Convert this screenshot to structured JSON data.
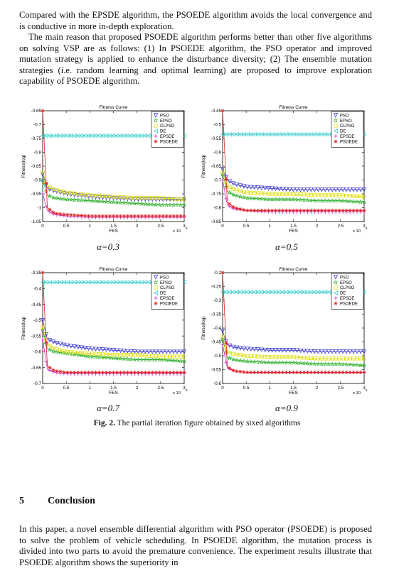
{
  "body_text": {
    "para1": "Compared with the EPSDE algorithm, the PSOEDE algorithm avoids the local convergence and is conductive in more in-depth exploration.",
    "para2": "The main reason that proposed PSOEDE algorithm performs better than other five algorithms on solving VSP are as follows: (1) In PSOEDE algorithm, the PSO operator and improved mutation strategy is applied to enhance the disturbance diversity; (2) The ensemble mutation strategies (i.e. random learning and optimal learning) are proposed to improve exploration capability of PSOEDE algorithm."
  },
  "figure": {
    "caption_label": "Fig. 2.",
    "caption_text": " The partial iteration figure obtained by sixed algorithms"
  },
  "section": {
    "number": "5",
    "title": "Conclusion",
    "paragraph": "In this paper, a novel ensemble differential algorithm with PSO operator (PSOEDE) is proposed to solve the problem of vehicle scheduling. In PSOEDE algorithm, the mutation process is divided into two parts to avoid the premature convenience. The experiment results illustrate that PSOEDE algorithm shows the superiority in"
  },
  "chart_data": [
    {
      "type": "line",
      "title": "Fitness Curve",
      "xlabel": "FES",
      "ylabel": "Fitness(log)",
      "x_multiplier": "x 10",
      "x_multiplier_exp": "5",
      "alpha_label": "α=0.3",
      "xlim": [
        0,
        3
      ],
      "ylim": [
        -1.05,
        -0.65
      ],
      "xticks": [
        "0",
        "0.5",
        "1",
        "1.5",
        "2",
        "2.5",
        "3"
      ],
      "yticks": [
        "-0.65",
        "-0.7",
        "-0.75",
        "-0.8",
        "-0.85",
        "-0.9",
        "-0.95",
        "-1",
        "-1.05"
      ],
      "x": [
        0,
        0.1,
        0.25,
        0.5,
        1,
        1.5,
        2,
        2.5,
        3
      ],
      "series": [
        {
          "name": "PSO",
          "color": "#3333cc",
          "marker": "triangle-down",
          "values": [
            -0.88,
            -0.93,
            -0.94,
            -0.95,
            -0.96,
            -0.965,
            -0.97,
            -0.97,
            -0.97
          ]
        },
        {
          "name": "EPSO",
          "color": "#22aa22",
          "marker": "star",
          "values": [
            -0.9,
            -0.955,
            -0.965,
            -0.97,
            -0.975,
            -0.98,
            -0.985,
            -0.99,
            -0.99
          ]
        },
        {
          "name": "CLPSO",
          "color": "#dddd00",
          "marker": "square",
          "values": [
            -0.87,
            -0.92,
            -0.935,
            -0.945,
            -0.955,
            -0.96,
            -0.965,
            -0.965,
            -0.97
          ]
        },
        {
          "name": "DE",
          "color": "#33cccc",
          "marker": "triangle-left",
          "values": [
            -0.74,
            -0.74,
            -0.74,
            -0.74,
            -0.74,
            -0.74,
            -0.74,
            -0.74,
            -0.74
          ]
        },
        {
          "name": "EPSDE",
          "color": "#cc33cc",
          "marker": "plus",
          "values": [
            -0.95,
            -1.01,
            -1.025,
            -1.03,
            -1.035,
            -1.035,
            -1.035,
            -1.035,
            -1.035
          ]
        },
        {
          "name": "PSOEDE",
          "color": "#dd2222",
          "marker": "asterisk",
          "values": [
            -0.65,
            -1.0,
            -1.02,
            -1.025,
            -1.03,
            -1.03,
            -1.03,
            -1.03,
            -1.03
          ]
        }
      ],
      "legend": "top-right",
      "grid": false
    },
    {
      "type": "line",
      "title": "Fitness Curve",
      "xlabel": "FES",
      "ylabel": "Fitness(log)",
      "x_multiplier": "x 10",
      "x_multiplier_exp": "5",
      "alpha_label": "α=0.5",
      "xlim": [
        0,
        3
      ],
      "ylim": [
        -0.85,
        -0.45
      ],
      "xticks": [
        "0",
        "0.5",
        "1",
        "1.5",
        "2",
        "2.5",
        "3"
      ],
      "yticks": [
        "-0.45",
        "-0.5",
        "-0.55",
        "-0.6",
        "-0.65",
        "-0.7",
        "-0.75",
        "-0.8",
        "-0.85"
      ],
      "x": [
        0,
        0.1,
        0.25,
        0.5,
        1,
        1.5,
        2,
        2.5,
        3
      ],
      "series": [
        {
          "name": "PSO",
          "color": "#3333cc",
          "marker": "triangle-down",
          "values": [
            -0.66,
            -0.7,
            -0.715,
            -0.725,
            -0.73,
            -0.735,
            -0.735,
            -0.735,
            -0.735
          ]
        },
        {
          "name": "EPSO",
          "color": "#22aa22",
          "marker": "star",
          "values": [
            -0.68,
            -0.74,
            -0.755,
            -0.765,
            -0.77,
            -0.77,
            -0.775,
            -0.775,
            -0.78
          ]
        },
        {
          "name": "CLPSO",
          "color": "#dddd00",
          "marker": "square",
          "values": [
            -0.67,
            -0.72,
            -0.735,
            -0.745,
            -0.75,
            -0.75,
            -0.755,
            -0.755,
            -0.76
          ]
        },
        {
          "name": "DE",
          "color": "#33cccc",
          "marker": "triangle-left",
          "values": [
            -0.535,
            -0.535,
            -0.535,
            -0.535,
            -0.535,
            -0.535,
            -0.535,
            -0.535,
            -0.535
          ]
        },
        {
          "name": "EPSDE",
          "color": "#cc33cc",
          "marker": "plus",
          "values": [
            -0.7,
            -0.79,
            -0.805,
            -0.81,
            -0.815,
            -0.815,
            -0.815,
            -0.815,
            -0.815
          ]
        },
        {
          "name": "PSOEDE",
          "color": "#dd2222",
          "marker": "asterisk",
          "values": [
            -0.45,
            -0.78,
            -0.8,
            -0.81,
            -0.81,
            -0.81,
            -0.81,
            -0.81,
            -0.81
          ]
        }
      ],
      "legend": "top-right",
      "grid": false
    },
    {
      "type": "line",
      "title": "Fitness Curve",
      "xlabel": "FES",
      "ylabel": "Fitness(log)",
      "x_multiplier": "x 10",
      "x_multiplier_exp": "5",
      "alpha_label": "α=0.7",
      "xlim": [
        0,
        3
      ],
      "ylim": [
        -0.7,
        -0.35
      ],
      "xticks": [
        "0",
        "0.5",
        "1",
        "1.5",
        "2",
        "2.5",
        "3"
      ],
      "yticks": [
        "-0.35",
        "-0.4",
        "-0.45",
        "-0.5",
        "-0.55",
        "-0.6",
        "-0.65",
        "-0.7"
      ],
      "x": [
        0,
        0.1,
        0.25,
        0.5,
        1,
        1.5,
        2,
        2.5,
        3
      ],
      "series": [
        {
          "name": "PSO",
          "color": "#3333cc",
          "marker": "triangle-down",
          "values": [
            -0.5,
            -0.56,
            -0.57,
            -0.58,
            -0.59,
            -0.595,
            -0.6,
            -0.6,
            -0.6
          ]
        },
        {
          "name": "EPSO",
          "color": "#22aa22",
          "marker": "star",
          "values": [
            -0.53,
            -0.59,
            -0.6,
            -0.605,
            -0.615,
            -0.62,
            -0.625,
            -0.625,
            -0.63
          ]
        },
        {
          "name": "CLPSO",
          "color": "#dddd00",
          "marker": "square",
          "values": [
            -0.52,
            -0.575,
            -0.59,
            -0.6,
            -0.605,
            -0.61,
            -0.61,
            -0.615,
            -0.615
          ]
        },
        {
          "name": "DE",
          "color": "#33cccc",
          "marker": "triangle-left",
          "values": [
            -0.38,
            -0.38,
            -0.38,
            -0.38,
            -0.38,
            -0.38,
            -0.38,
            -0.38,
            -0.38
          ]
        },
        {
          "name": "EPSDE",
          "color": "#cc33cc",
          "marker": "plus",
          "values": [
            -0.56,
            -0.655,
            -0.665,
            -0.67,
            -0.67,
            -0.67,
            -0.67,
            -0.67,
            -0.67
          ]
        },
        {
          "name": "PSOEDE",
          "color": "#dd2222",
          "marker": "asterisk",
          "values": [
            -0.35,
            -0.645,
            -0.66,
            -0.665,
            -0.665,
            -0.665,
            -0.665,
            -0.665,
            -0.665
          ]
        }
      ],
      "legend": "top-right",
      "grid": false
    },
    {
      "type": "line",
      "title": "Fitness Curve",
      "xlabel": "FES",
      "ylabel": "Fitness(log)",
      "x_multiplier": "x 10",
      "x_multiplier_exp": "5",
      "alpha_label": "α=0.9",
      "xlim": [
        0,
        3
      ],
      "ylim": [
        -0.6,
        -0.2
      ],
      "xticks": [
        "0",
        "0.5",
        "1",
        "1.5",
        "2",
        "2.5",
        "3"
      ],
      "yticks": [
        "-0.2",
        "-0.25",
        "-0.3",
        "-0.35",
        "-0.4",
        "-0.45",
        "-0.5",
        "-0.55",
        "-0.6"
      ],
      "x": [
        0,
        0.1,
        0.25,
        0.5,
        1,
        1.5,
        2,
        2.5,
        3
      ],
      "series": [
        {
          "name": "PSO",
          "color": "#3333cc",
          "marker": "triangle-down",
          "values": [
            -0.41,
            -0.46,
            -0.47,
            -0.475,
            -0.48,
            -0.48,
            -0.485,
            -0.485,
            -0.485
          ]
        },
        {
          "name": "EPSO",
          "color": "#22aa22",
          "marker": "star",
          "values": [
            -0.44,
            -0.505,
            -0.515,
            -0.52,
            -0.525,
            -0.525,
            -0.53,
            -0.53,
            -0.535
          ]
        },
        {
          "name": "CLPSO",
          "color": "#dddd00",
          "marker": "square",
          "values": [
            -0.43,
            -0.485,
            -0.495,
            -0.5,
            -0.505,
            -0.505,
            -0.51,
            -0.51,
            -0.51
          ]
        },
        {
          "name": "DE",
          "color": "#33cccc",
          "marker": "triangle-left",
          "values": [
            -0.27,
            -0.27,
            -0.27,
            -0.27,
            -0.27,
            -0.27,
            -0.27,
            -0.27,
            -0.27
          ]
        },
        {
          "name": "EPSDE",
          "color": "#cc33cc",
          "marker": "plus",
          "values": [
            -0.46,
            -0.545,
            -0.555,
            -0.56,
            -0.56,
            -0.56,
            -0.56,
            -0.56,
            -0.56
          ]
        },
        {
          "name": "PSOEDE",
          "color": "#dd2222",
          "marker": "asterisk",
          "values": [
            -0.2,
            -0.54,
            -0.555,
            -0.56,
            -0.56,
            -0.56,
            -0.56,
            -0.56,
            -0.56
          ]
        }
      ],
      "legend": "top-right",
      "grid": false
    }
  ]
}
